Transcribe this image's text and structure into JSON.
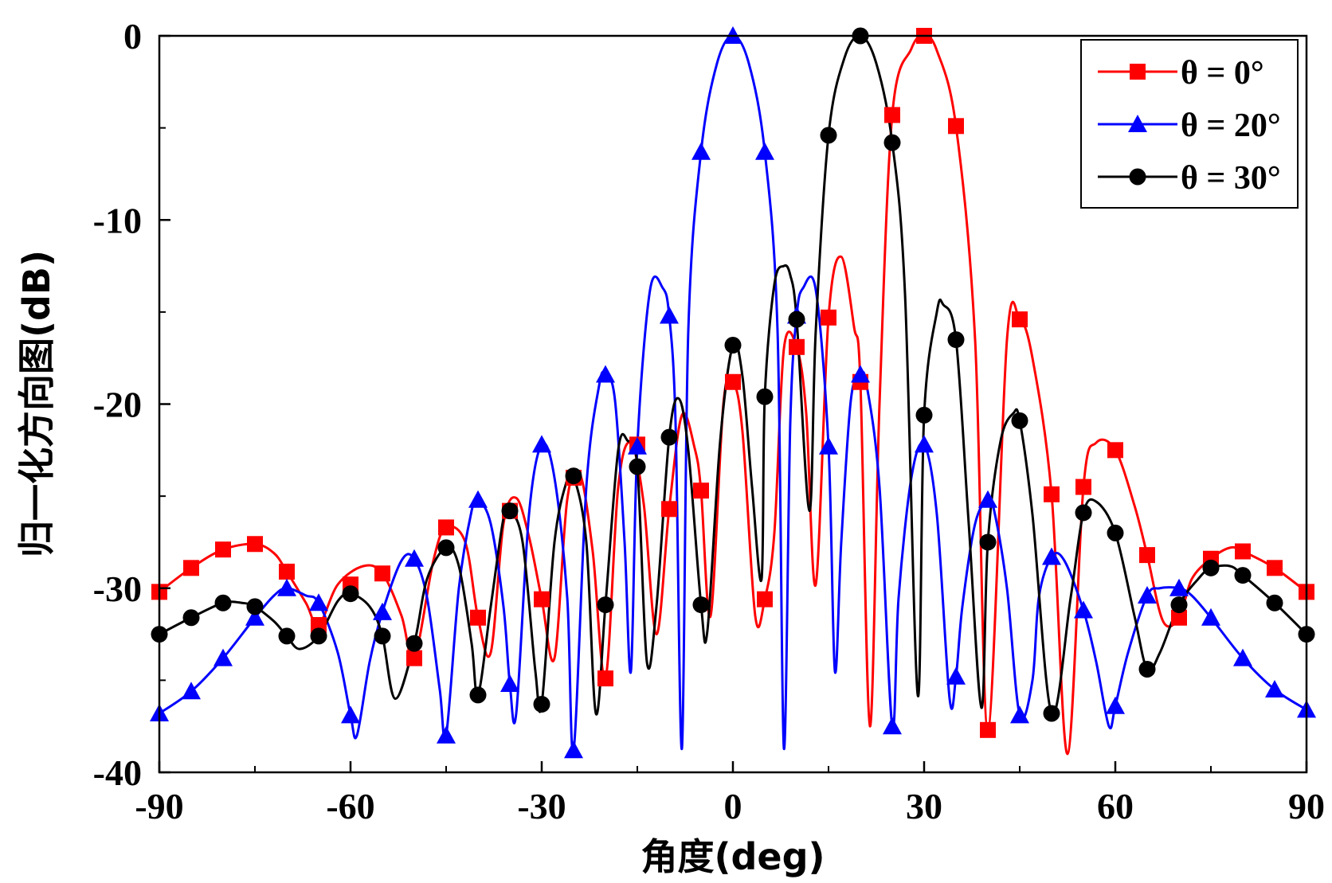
{
  "chart_data": {
    "type": "line",
    "title": "",
    "xlabel": "角度(deg)",
    "ylabel": "归一化方向图(dB)",
    "xlim": [
      -90,
      90
    ],
    "ylim": [
      -40,
      0
    ],
    "xticks": [
      -90,
      -60,
      -30,
      0,
      30,
      60,
      90
    ],
    "yticks": [
      0,
      -10,
      -20,
      -30,
      -40
    ],
    "xtick_labels": [
      "-90",
      "-60",
      "-30",
      "0",
      "30",
      "60",
      "90"
    ],
    "ytick_labels": [
      "0",
      "-10",
      "-20",
      "-30",
      "-40"
    ],
    "grid": false,
    "legend_position": "top-right",
    "series": [
      {
        "name": "θ = 0°",
        "color": "#ff0000",
        "marker": "square",
        "x": [
          -90,
          -85,
          -80,
          -75,
          -70,
          -65,
          -60,
          -55,
          -50,
          -45,
          -40,
          -35,
          -30,
          -25,
          -20,
          -15,
          -10,
          -5,
          0,
          5,
          10,
          15,
          20,
          25,
          30,
          35,
          40,
          45,
          50,
          55,
          60,
          65,
          70,
          75,
          80,
          85,
          90
        ],
        "y": [
          -30.2,
          -28.9,
          -27.9,
          -27.6,
          -29.1,
          -32.0,
          -29.8,
          -29.2,
          -33.8,
          -26.7,
          -31.6,
          -25.8,
          -30.6,
          -24.0,
          -34.9,
          -22.2,
          -25.7,
          -24.7,
          -18.8,
          -30.6,
          -16.9,
          -15.3,
          -18.8,
          -4.3,
          0.0,
          -4.9,
          -37.7,
          -15.4,
          -24.9,
          -24.5,
          -22.5,
          -28.2,
          -31.6,
          -28.4,
          -28.0,
          -28.9,
          -30.2
        ],
        "curve": [
          [
            -90,
            -30.2
          ],
          [
            -85,
            -28.9
          ],
          [
            -80,
            -27.9
          ],
          [
            -75,
            -27.6
          ],
          [
            -72,
            -28.1
          ],
          [
            -70,
            -29.1
          ],
          [
            -67,
            -30.8
          ],
          [
            -65,
            -32.0
          ],
          [
            -62,
            -29.8
          ],
          [
            -58,
            -28.8
          ],
          [
            -55,
            -29.2
          ],
          [
            -52,
            -31.5
          ],
          [
            -50,
            -33.8
          ],
          [
            -47,
            -28.5
          ],
          [
            -45,
            -26.7
          ],
          [
            -42,
            -27.5
          ],
          [
            -40,
            -31.6
          ],
          [
            -38,
            -33.5
          ],
          [
            -36,
            -26.5
          ],
          [
            -34,
            -25.1
          ],
          [
            -32,
            -27.2
          ],
          [
            -30,
            -30.6
          ],
          [
            -28,
            -33.8
          ],
          [
            -26,
            -25.2
          ],
          [
            -24,
            -23.8
          ],
          [
            -22,
            -28.0
          ],
          [
            -20,
            -34.9
          ],
          [
            -18,
            -24.5
          ],
          [
            -16,
            -22.1
          ],
          [
            -14,
            -25.4
          ],
          [
            -12,
            -32.5
          ],
          [
            -10,
            -25.7
          ],
          [
            -8,
            -20.6
          ],
          [
            -6,
            -22.4
          ],
          [
            -5,
            -24.7
          ],
          [
            -3.5,
            -31.5
          ],
          [
            -1.5,
            -20.0
          ],
          [
            0,
            -18.8
          ],
          [
            1.5,
            -21.5
          ],
          [
            3.5,
            -31.5
          ],
          [
            5,
            -30.6
          ],
          [
            6.5,
            -27.0
          ],
          [
            8,
            -17.0
          ],
          [
            10,
            -16.9
          ],
          [
            11.5,
            -20.5
          ],
          [
            13,
            -29.8
          ],
          [
            15,
            -15.3
          ],
          [
            17,
            -12.0
          ],
          [
            19,
            -15.8
          ],
          [
            20,
            -18.8
          ],
          [
            21.5,
            -37.5
          ],
          [
            23,
            -20.0
          ],
          [
            25,
            -4.3
          ],
          [
            28,
            -0.7
          ],
          [
            30,
            0.0
          ],
          [
            32,
            -0.8
          ],
          [
            35,
            -4.9
          ],
          [
            38,
            -16.5
          ],
          [
            40,
            -37.7
          ],
          [
            43,
            -16.5
          ],
          [
            45,
            -15.4
          ],
          [
            47,
            -17.5
          ],
          [
            50,
            -24.9
          ],
          [
            52.5,
            -39.0
          ],
          [
            55,
            -24.5
          ],
          [
            57,
            -22.1
          ],
          [
            60,
            -22.5
          ],
          [
            63,
            -25.5
          ],
          [
            65,
            -28.2
          ],
          [
            67.5,
            -31.8
          ],
          [
            70,
            -31.6
          ],
          [
            72,
            -29.5
          ],
          [
            75,
            -28.4
          ],
          [
            78,
            -27.8
          ],
          [
            80,
            -28.0
          ],
          [
            85,
            -28.9
          ],
          [
            90,
            -30.2
          ]
        ]
      },
      {
        "name": "θ = 20°",
        "color": "#0000ff",
        "marker": "triangle",
        "x": [
          -90,
          -85,
          -80,
          -75,
          -70,
          -65,
          -60,
          -55,
          -50,
          -45,
          -40,
          -35,
          -30,
          -25,
          -20,
          -15,
          -10,
          -5,
          0,
          5,
          10,
          15,
          20,
          25,
          30,
          35,
          40,
          45,
          50,
          55,
          60,
          65,
          70,
          75,
          80,
          85,
          90
        ],
        "y": [
          -36.8,
          -35.6,
          -33.8,
          -31.6,
          -30.0,
          -30.8,
          -36.9,
          -31.3,
          -28.4,
          -38.0,
          -25.2,
          -35.2,
          -22.2,
          -38.8,
          -18.4,
          -22.3,
          -15.2,
          -6.3,
          0.0,
          -6.3,
          -15.2,
          -22.3,
          -18.4,
          -37.5,
          -22.2,
          -34.8,
          -25.2,
          -36.9,
          -28.3,
          -31.2,
          -36.4,
          -30.4,
          -30.0,
          -31.6,
          -33.8,
          -35.5,
          -36.6
        ],
        "curve": [
          [
            -90,
            -36.8
          ],
          [
            -85,
            -35.6
          ],
          [
            -80,
            -33.8
          ],
          [
            -75,
            -31.6
          ],
          [
            -72,
            -30.4
          ],
          [
            -70,
            -30.0
          ],
          [
            -67,
            -30.4
          ],
          [
            -65,
            -30.8
          ],
          [
            -62,
            -33.5
          ],
          [
            -60,
            -36.9
          ],
          [
            -59,
            -38.0
          ],
          [
            -57,
            -34.0
          ],
          [
            -55,
            -31.3
          ],
          [
            -52,
            -28.5
          ],
          [
            -50,
            -28.4
          ],
          [
            -48,
            -30.5
          ],
          [
            -46,
            -35.5
          ],
          [
            -45,
            -38.0
          ],
          [
            -43,
            -30.0
          ],
          [
            -41,
            -25.8
          ],
          [
            -40,
            -25.2
          ],
          [
            -38,
            -26.5
          ],
          [
            -36,
            -31.0
          ],
          [
            -35,
            -35.2
          ],
          [
            -34,
            -36.8
          ],
          [
            -32,
            -26.0
          ],
          [
            -30,
            -22.2
          ],
          [
            -28,
            -24.0
          ],
          [
            -26,
            -30.5
          ],
          [
            -25,
            -38.8
          ],
          [
            -23,
            -24.5
          ],
          [
            -21,
            -19.0
          ],
          [
            -20,
            -18.4
          ],
          [
            -18.5,
            -19.8
          ],
          [
            -17,
            -27.5
          ],
          [
            -16,
            -34.5
          ],
          [
            -15,
            -22.3
          ],
          [
            -13,
            -13.8
          ],
          [
            -11,
            -13.7
          ],
          [
            -10,
            -15.2
          ],
          [
            -9,
            -21.0
          ],
          [
            -8,
            -38.7
          ],
          [
            -7,
            -16.0
          ],
          [
            -5,
            -6.3
          ],
          [
            -2.5,
            -1.5
          ],
          [
            0,
            0.0
          ],
          [
            2.5,
            -1.5
          ],
          [
            5,
            -6.3
          ],
          [
            7,
            -16.0
          ],
          [
            8,
            -38.7
          ],
          [
            9,
            -21.0
          ],
          [
            10,
            -15.2
          ],
          [
            11,
            -13.7
          ],
          [
            13,
            -13.8
          ],
          [
            15,
            -22.3
          ],
          [
            16,
            -34.5
          ],
          [
            17,
            -27.5
          ],
          [
            18.5,
            -19.8
          ],
          [
            20,
            -18.4
          ],
          [
            21,
            -19.0
          ],
          [
            23,
            -24.5
          ],
          [
            25,
            -37.5
          ],
          [
            26,
            -30.5
          ],
          [
            28,
            -24.0
          ],
          [
            30,
            -22.2
          ],
          [
            32,
            -26.0
          ],
          [
            34,
            -36.0
          ],
          [
            35,
            -34.8
          ],
          [
            36,
            -31.0
          ],
          [
            38,
            -26.5
          ],
          [
            40,
            -25.2
          ],
          [
            41,
            -25.8
          ],
          [
            43,
            -30.0
          ],
          [
            45,
            -36.9
          ],
          [
            47,
            -35.0
          ],
          [
            48,
            -30.5
          ],
          [
            50,
            -28.3
          ],
          [
            52,
            -28.5
          ],
          [
            55,
            -31.2
          ],
          [
            57,
            -34.0
          ],
          [
            59,
            -37.5
          ],
          [
            60,
            -36.4
          ],
          [
            62,
            -33.5
          ],
          [
            65,
            -30.4
          ],
          [
            67,
            -30.0
          ],
          [
            70,
            -30.0
          ],
          [
            72,
            -30.4
          ],
          [
            75,
            -31.6
          ],
          [
            80,
            -33.8
          ],
          [
            85,
            -35.5
          ],
          [
            90,
            -36.6
          ]
        ]
      },
      {
        "name": "θ = 30°",
        "color": "#000000",
        "marker": "circle",
        "x": [
          -90,
          -85,
          -80,
          -75,
          -70,
          -65,
          -60,
          -55,
          -50,
          -45,
          -40,
          -35,
          -30,
          -25,
          -20,
          -15,
          -10,
          -5,
          0,
          5,
          10,
          15,
          20,
          25,
          30,
          35,
          40,
          45,
          50,
          55,
          60,
          65,
          70,
          75,
          80,
          85,
          90
        ],
        "y": [
          -32.5,
          -31.6,
          -30.8,
          -31.0,
          -32.6,
          -32.6,
          -30.3,
          -32.6,
          -33.0,
          -27.8,
          -35.8,
          -25.8,
          -36.3,
          -23.9,
          -30.9,
          -23.4,
          -21.8,
          -30.9,
          -16.8,
          -19.6,
          -15.4,
          -5.4,
          0.0,
          -5.8,
          -20.6,
          -16.5,
          -27.5,
          -20.9,
          -36.8,
          -25.9,
          -27.0,
          -34.4,
          -30.9,
          -28.9,
          -29.3,
          -30.8,
          -32.5
        ],
        "curve": [
          [
            -90,
            -32.5
          ],
          [
            -85,
            -31.6
          ],
          [
            -80,
            -30.8
          ],
          [
            -77,
            -30.8
          ],
          [
            -75,
            -31.0
          ],
          [
            -72,
            -31.8
          ],
          [
            -70,
            -32.6
          ],
          [
            -68,
            -33.3
          ],
          [
            -65,
            -32.6
          ],
          [
            -62,
            -30.7
          ],
          [
            -60,
            -30.3
          ],
          [
            -57,
            -31.0
          ],
          [
            -55,
            -32.6
          ],
          [
            -53,
            -36.0
          ],
          [
            -50,
            -33.0
          ],
          [
            -48,
            -29.5
          ],
          [
            -45,
            -27.8
          ],
          [
            -43,
            -28.8
          ],
          [
            -41,
            -33.0
          ],
          [
            -40,
            -35.8
          ],
          [
            -38,
            -31.0
          ],
          [
            -36,
            -26.2
          ],
          [
            -35,
            -25.8
          ],
          [
            -33,
            -27.5
          ],
          [
            -31,
            -34.5
          ],
          [
            -30,
            -36.3
          ],
          [
            -28,
            -27.5
          ],
          [
            -26,
            -24.1
          ],
          [
            -25,
            -23.9
          ],
          [
            -23,
            -27.5
          ],
          [
            -21.5,
            -36.8
          ],
          [
            -20,
            -30.9
          ],
          [
            -18,
            -22.5
          ],
          [
            -16.5,
            -22.0
          ],
          [
            -15,
            -23.4
          ],
          [
            -13.5,
            -34.0
          ],
          [
            -12,
            -31.0
          ],
          [
            -10,
            -21.8
          ],
          [
            -8.5,
            -19.7
          ],
          [
            -7,
            -22.5
          ],
          [
            -5,
            -30.9
          ],
          [
            -4,
            -32.3
          ],
          [
            -2,
            -22.0
          ],
          [
            0,
            -16.8
          ],
          [
            1.5,
            -18.5
          ],
          [
            3,
            -24.5
          ],
          [
            4.5,
            -29.5
          ],
          [
            5,
            -19.6
          ],
          [
            6.5,
            -13.5
          ],
          [
            8,
            -12.5
          ],
          [
            9,
            -13.0
          ],
          [
            10,
            -15.4
          ],
          [
            12,
            -25.8
          ],
          [
            13,
            -16.0
          ],
          [
            15,
            -5.4
          ],
          [
            17.5,
            -1.2
          ],
          [
            20,
            0.0
          ],
          [
            22.5,
            -1.5
          ],
          [
            25,
            -5.8
          ],
          [
            27,
            -14.0
          ],
          [
            29,
            -35.8
          ],
          [
            30,
            -20.6
          ],
          [
            32,
            -15.0
          ],
          [
            33,
            -14.6
          ],
          [
            35,
            -16.5
          ],
          [
            37,
            -26.5
          ],
          [
            39,
            -36.5
          ],
          [
            40,
            -27.5
          ],
          [
            42,
            -22.0
          ],
          [
            44,
            -20.5
          ],
          [
            45,
            -20.9
          ],
          [
            47,
            -26.0
          ],
          [
            50,
            -36.8
          ],
          [
            53,
            -30.5
          ],
          [
            55,
            -25.9
          ],
          [
            57,
            -25.3
          ],
          [
            60,
            -27.0
          ],
          [
            63,
            -31.5
          ],
          [
            65,
            -34.4
          ],
          [
            67,
            -33.5
          ],
          [
            70,
            -30.9
          ],
          [
            73,
            -29.5
          ],
          [
            75,
            -28.9
          ],
          [
            78,
            -28.8
          ],
          [
            80,
            -29.3
          ],
          [
            85,
            -30.8
          ],
          [
            90,
            -32.5
          ]
        ]
      }
    ]
  }
}
